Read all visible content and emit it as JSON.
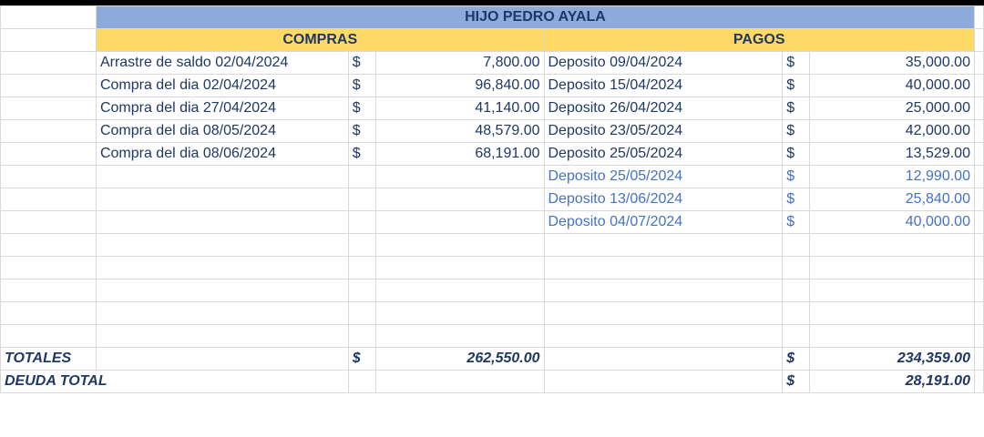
{
  "title": "HIJO PEDRO AYALA",
  "compras_header": "COMPRAS",
  "pagos_header": "PAGOS",
  "currency_symbol": "$",
  "compras": [
    {
      "concept": "Arrastre de saldo 02/04/2024",
      "amount": "7,800.00"
    },
    {
      "concept": "Compra del dia 02/04/2024",
      "amount": "96,840.00"
    },
    {
      "concept": "Compra del dia 27/04/2024",
      "amount": "41,140.00"
    },
    {
      "concept": "Compra del dia 08/05/2024",
      "amount": "48,579.00"
    },
    {
      "concept": "Compra del dia 08/06/2024",
      "amount": "68,191.00"
    }
  ],
  "pagos": [
    {
      "concept": "Deposito 09/04/2024",
      "amount": "35,000.00"
    },
    {
      "concept": "Deposito 15/04/2024",
      "amount": "40,000.00"
    },
    {
      "concept": "Deposito 26/04/2024",
      "amount": "25,000.00"
    },
    {
      "concept": "Deposito 23/05/2024",
      "amount": "42,000.00"
    },
    {
      "concept": "Deposito 25/05/2024",
      "amount": "13,529.00"
    },
    {
      "concept": "Deposito 25/05/2024",
      "amount": "12,990.00"
    },
    {
      "concept": "Deposito 13/06/2024",
      "amount": "25,840.00"
    },
    {
      "concept": "Deposito 04/07/2024",
      "amount": "40,000.00"
    }
  ],
  "totales": {
    "label": "TOTALES",
    "compras_total": "262,550.00",
    "pagos_total": "234,359.00"
  },
  "deuda": {
    "label": "DEUDA TOTAL",
    "amount": "28,191.00"
  },
  "colors": {
    "title_bg": "#8eaadb",
    "section_bg": "#ffd966",
    "grid": "#4fb0c6",
    "text": "#1f3864"
  }
}
